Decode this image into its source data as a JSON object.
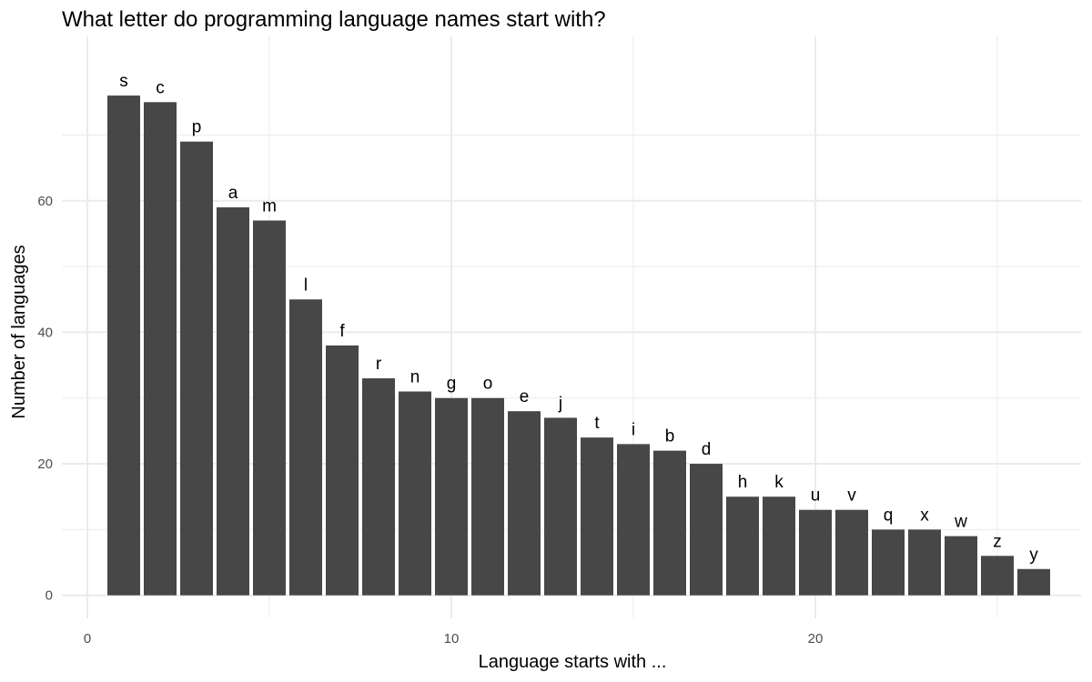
{
  "chart_data": {
    "type": "bar",
    "title": "What letter do programming language names start with?",
    "xlabel": "Language starts with ...",
    "ylabel": "Number of languages",
    "x": [
      1,
      2,
      3,
      4,
      5,
      6,
      7,
      8,
      9,
      10,
      11,
      12,
      13,
      14,
      15,
      16,
      17,
      18,
      19,
      20,
      21,
      22,
      23,
      24,
      25,
      26
    ],
    "letters": [
      "s",
      "c",
      "p",
      "a",
      "m",
      "l",
      "f",
      "r",
      "n",
      "g",
      "o",
      "e",
      "j",
      "t",
      "i",
      "b",
      "d",
      "h",
      "k",
      "u",
      "v",
      "q",
      "x",
      "w",
      "z",
      "y"
    ],
    "values": [
      76,
      75,
      69,
      59,
      57,
      45,
      38,
      33,
      31,
      30,
      30,
      28,
      27,
      24,
      23,
      22,
      20,
      15,
      15,
      13,
      13,
      10,
      10,
      9,
      6,
      4
    ],
    "xlim": [
      -0.7,
      27.3
    ],
    "ylim": [
      -3.5,
      85
    ],
    "x_ticks": [
      0,
      10,
      20
    ],
    "x_tick_labels": [
      "0",
      "10",
      "20"
    ],
    "y_ticks": [
      0,
      20,
      40,
      60
    ],
    "y_tick_labels": [
      "0",
      "20",
      "40",
      "60"
    ],
    "grid": true,
    "legend": "none",
    "colors": {
      "bar": "#474747",
      "grid": "#ebebeb",
      "background": "#ffffff"
    }
  }
}
